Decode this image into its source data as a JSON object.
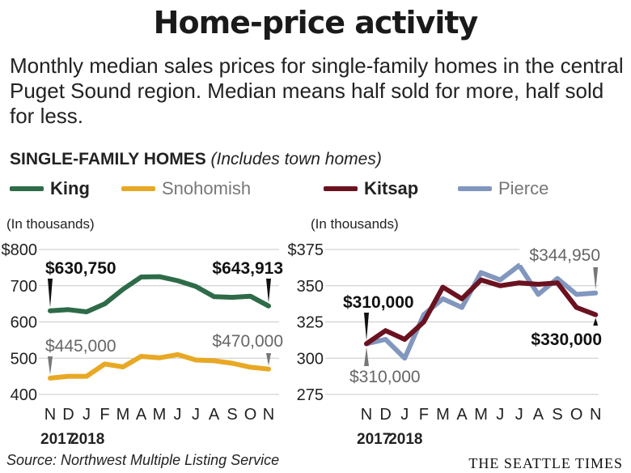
{
  "header": {
    "title": "Home-price activity",
    "subtitle": "Monthly median sales prices for single-family homes in the central Puget Sound region. Median means half sold for more, half sold for less."
  },
  "section": {
    "heading_bold": "SINGLE-FAMILY HOMES",
    "heading_italic": "(Includes town homes)"
  },
  "legend": [
    {
      "label": "King",
      "color": "#2e6b48"
    },
    {
      "label": "Snohomish",
      "color": "#e8a824"
    },
    {
      "label": "Kitsap",
      "color": "#6b1220"
    },
    {
      "label": "Pierce",
      "color": "#8197be"
    }
  ],
  "footer": {
    "source": "Source: Northwest Multiple Listing Service",
    "masthead": "THE SEATTLE TIMES"
  },
  "chart_data": [
    {
      "type": "line",
      "unit_note": "(In thousands)",
      "ylim": [
        400,
        800
      ],
      "yticks": [
        400,
        500,
        600,
        700,
        800
      ],
      "ytick_labels": [
        "400",
        "500",
        "600",
        "700",
        "$800"
      ],
      "x": [
        "N",
        "D",
        "J",
        "F",
        "M",
        "A",
        "M",
        "J",
        "J",
        "A",
        "S",
        "O",
        "N"
      ],
      "year_labels": [
        "2017",
        "2018"
      ],
      "series": [
        {
          "name": "King",
          "color": "#2e6b48",
          "values": [
            630.75,
            634,
            628,
            650,
            690,
            724,
            725,
            714,
            698,
            670,
            668,
            671,
            643.913
          ]
        },
        {
          "name": "Snohomish",
          "color": "#e8a824",
          "values": [
            445,
            450,
            450,
            484,
            476,
            505,
            501,
            510,
            495,
            493,
            486,
            475,
            470
          ]
        }
      ],
      "annotations": [
        {
          "text": "$630,750",
          "series": "King",
          "point": "start"
        },
        {
          "text": "$643,913",
          "series": "King",
          "point": "end"
        },
        {
          "text": "$445,000",
          "series": "Snohomish",
          "point": "start"
        },
        {
          "text": "$470,000",
          "series": "Snohomish",
          "point": "end"
        }
      ]
    },
    {
      "type": "line",
      "unit_note": "(In thousands)",
      "ylim": [
        275,
        375
      ],
      "yticks": [
        275,
        300,
        325,
        350,
        375
      ],
      "ytick_labels": [
        "275",
        "300",
        "325",
        "350",
        "$375"
      ],
      "x": [
        "N",
        "D",
        "J",
        "F",
        "M",
        "A",
        "M",
        "J",
        "J",
        "A",
        "S",
        "O",
        "N"
      ],
      "year_labels": [
        "2017",
        "2018"
      ],
      "series": [
        {
          "name": "Pierce",
          "color": "#8197be",
          "values": [
            310,
            313,
            300,
            330,
            341,
            335,
            359,
            354,
            364,
            344,
            355,
            344,
            344.95
          ]
        },
        {
          "name": "Kitsap",
          "color": "#6b1220",
          "values": [
            310,
            319,
            313,
            325,
            349,
            341,
            354,
            350,
            352,
            351,
            352,
            335,
            330
          ]
        }
      ],
      "annotations": [
        {
          "text": "$310,000",
          "series": "Kitsap",
          "point": "start"
        },
        {
          "text": "$310,000",
          "series": "Pierce",
          "point": "start"
        },
        {
          "text": "$344,950",
          "series": "Pierce",
          "point": "end"
        },
        {
          "text": "$330,000",
          "series": "Kitsap",
          "point": "end"
        }
      ]
    }
  ]
}
